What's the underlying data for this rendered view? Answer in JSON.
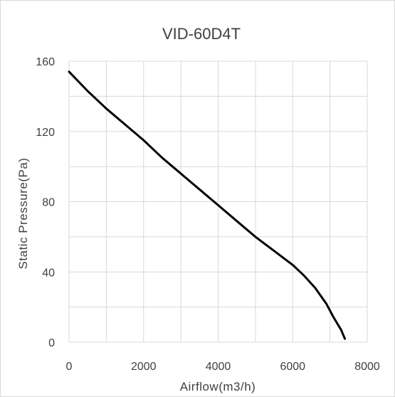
{
  "chart_data": {
    "type": "line",
    "title": "VID-60D4T",
    "xlabel": "Airflow(m3/h)",
    "ylabel": "Static Pressure(Pa)",
    "xlim": [
      0,
      8000
    ],
    "ylim": [
      0,
      160
    ],
    "x_ticks": [
      0,
      2000,
      4000,
      6000,
      8000
    ],
    "y_ticks": [
      0,
      40,
      80,
      120,
      160
    ],
    "x_minor_grid": [
      1000,
      3000,
      5000,
      7000
    ],
    "y_minor_grid": [
      20,
      60,
      100,
      140
    ],
    "grid": true,
    "legend": "none",
    "series": [
      {
        "values": [
          [
            0,
            154
          ],
          [
            500,
            143
          ],
          [
            1000,
            133
          ],
          [
            1500,
            124
          ],
          [
            2000,
            115
          ],
          [
            2500,
            105
          ],
          [
            3000,
            96
          ],
          [
            3500,
            87
          ],
          [
            4000,
            78
          ],
          [
            4500,
            69
          ],
          [
            5000,
            60
          ],
          [
            5500,
            52
          ],
          [
            6000,
            44
          ],
          [
            6300,
            38
          ],
          [
            6600,
            31
          ],
          [
            6900,
            22
          ],
          [
            7100,
            14
          ],
          [
            7300,
            7
          ],
          [
            7400,
            2
          ]
        ],
        "color": "#000000"
      }
    ]
  }
}
